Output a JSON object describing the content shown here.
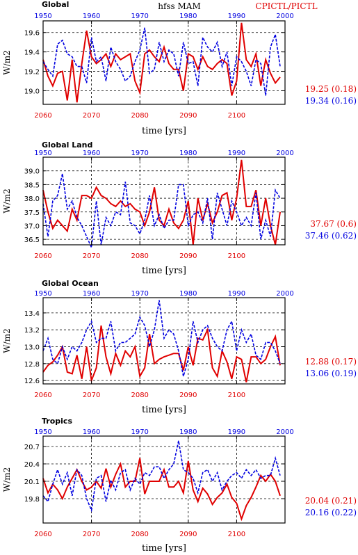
{
  "header": {
    "variable": "hfss MAM",
    "experiments": "CPICTL/PICTL",
    "exp_a_color": "#e00000",
    "exp_b_color": "#0000e0"
  },
  "chart_data": [
    {
      "type": "line",
      "title": "Global",
      "ylabel": "W/m2",
      "xlabel": "time [yrs]",
      "x_bottom_ticks": [
        "2060",
        "2070",
        "2080",
        "2090",
        "2100"
      ],
      "x_top_ticks": [
        "1950",
        "1960",
        "1970",
        "1980",
        "1990",
        "2000"
      ],
      "x_start_bottom": 2060,
      "x_start_top": 1950,
      "n_years": 50,
      "ylim": [
        18.86,
        19.72
      ],
      "yticks": [
        "19.0",
        "19.2",
        "19.4",
        "19.6"
      ],
      "ytick_values": [
        19.0,
        19.2,
        19.4,
        19.6
      ],
      "stats": [
        {
          "text": "19.25 (0.18)",
          "color": "#e00000"
        },
        {
          "text": "19.34 (0.16)",
          "color": "#0000e0"
        }
      ],
      "series": [
        {
          "name": "CPICTL",
          "color": "#e00000",
          "dash": "solid",
          "values": [
            19.32,
            19.15,
            19.05,
            19.18,
            19.2,
            18.9,
            19.32,
            18.88,
            19.28,
            19.62,
            19.35,
            19.28,
            19.32,
            19.38,
            19.25,
            19.38,
            19.32,
            19.35,
            19.38,
            19.1,
            18.98,
            19.38,
            19.42,
            19.35,
            19.3,
            19.45,
            19.28,
            19.22,
            19.22,
            19.0,
            19.38,
            19.35,
            19.22,
            19.35,
            19.25,
            19.22,
            19.28,
            19.32,
            19.28,
            18.95,
            19.1,
            19.7,
            19.32,
            19.25,
            19.38,
            19.05,
            19.32,
            19.18,
            19.08,
            19.14
          ]
        },
        {
          "name": "PICTL",
          "color": "#0000e0",
          "dash": "dashed",
          "values": [
            19.3,
            19.22,
            19.15,
            19.48,
            19.52,
            19.38,
            19.35,
            19.25,
            19.25,
            19.08,
            19.55,
            19.3,
            19.35,
            19.1,
            19.45,
            19.3,
            19.22,
            19.1,
            19.15,
            19.3,
            19.42,
            19.65,
            19.18,
            19.22,
            19.5,
            19.3,
            19.42,
            19.38,
            19.15,
            19.5,
            19.28,
            19.3,
            19.05,
            19.55,
            19.45,
            19.4,
            19.5,
            19.25,
            19.4,
            19.05,
            19.35,
            19.3,
            19.2,
            19.05,
            19.32,
            19.28,
            18.95,
            19.45,
            19.58,
            19.25
          ]
        }
      ]
    },
    {
      "type": "line",
      "title": "Global Land",
      "ylabel": "W/m2",
      "xlabel": "time [yrs]",
      "x_bottom_ticks": [
        "2060",
        "2070",
        "2080",
        "2090",
        "2100"
      ],
      "x_top_ticks": [
        "1950",
        "1960",
        "1970",
        "1980",
        "1990",
        "2000"
      ],
      "x_start_bottom": 2060,
      "x_start_top": 1950,
      "n_years": 50,
      "ylim": [
        36.3,
        39.5
      ],
      "yticks": [
        "36.5",
        "37.0",
        "37.5",
        "38.0",
        "38.5",
        "39.0"
      ],
      "ytick_values": [
        36.5,
        37.0,
        37.5,
        38.0,
        38.5,
        39.0
      ],
      "stats": [
        {
          "text": "37.67 (0.6)",
          "color": "#e00000"
        },
        {
          "text": "37.46 (0.62)",
          "color": "#0000e0"
        }
      ],
      "series": [
        {
          "name": "CPICTL",
          "color": "#e00000",
          "dash": "solid",
          "values": [
            38.3,
            37.5,
            36.9,
            37.2,
            37.0,
            36.8,
            37.6,
            37.2,
            38.1,
            38.1,
            38.0,
            38.4,
            38.1,
            38.0,
            37.8,
            37.7,
            37.9,
            37.7,
            37.8,
            37.6,
            37.5,
            37.0,
            37.5,
            38.4,
            37.2,
            37.0,
            37.6,
            37.1,
            36.9,
            37.2,
            37.9,
            36.3,
            38.0,
            37.2,
            37.8,
            37.1,
            37.5,
            38.1,
            38.2,
            37.2,
            38.0,
            39.4,
            37.7,
            37.7,
            38.3,
            37.0,
            38.0,
            37.0,
            36.3,
            37.5
          ]
        },
        {
          "name": "PICTL",
          "color": "#0000e0",
          "dash": "dashed",
          "values": [
            37.8,
            36.6,
            37.9,
            38.1,
            38.9,
            37.6,
            37.9,
            37.3,
            37.0,
            36.6,
            36.2,
            37.9,
            36.3,
            37.3,
            37.0,
            37.5,
            37.4,
            38.6,
            37.1,
            37.0,
            36.7,
            37.2,
            38.1,
            37.0,
            37.4,
            36.9,
            37.2,
            37.2,
            38.5,
            38.5,
            37.0,
            37.4,
            37.5,
            37.1,
            38.0,
            36.5,
            38.2,
            37.6,
            37.0,
            37.9,
            37.5,
            37.0,
            37.3,
            37.0,
            38.2,
            36.5,
            37.2,
            36.6,
            38.3,
            38.0
          ]
        }
      ]
    },
    {
      "type": "line",
      "title": "Global Ocean",
      "ylabel": "W/m2",
      "xlabel": "time [yrs]",
      "x_bottom_ticks": [
        "2060",
        "2070",
        "2080",
        "2090",
        "2100"
      ],
      "x_top_ticks": [
        "1950",
        "1960",
        "1970",
        "1980",
        "1990",
        "2000"
      ],
      "x_start_bottom": 2060,
      "x_start_top": 1950,
      "n_years": 50,
      "ylim": [
        12.56,
        13.58
      ],
      "yticks": [
        "12.6",
        "12.8",
        "13.0",
        "13.2",
        "13.4"
      ],
      "ytick_values": [
        12.6,
        12.8,
        13.0,
        13.2,
        13.4
      ],
      "stats": [
        {
          "text": "12.88 (0.17)",
          "color": "#e00000"
        },
        {
          "text": "13.06 (0.19)",
          "color": "#0000e0"
        }
      ],
      "series": [
        {
          "name": "CPICTL",
          "color": "#e00000",
          "dash": "solid",
          "values": [
            12.7,
            12.78,
            12.82,
            12.9,
            13.0,
            12.7,
            12.68,
            12.9,
            12.62,
            13.0,
            12.6,
            12.75,
            13.25,
            12.88,
            12.68,
            12.92,
            12.78,
            12.95,
            12.88,
            13.0,
            12.65,
            12.75,
            13.15,
            12.8,
            12.85,
            12.88,
            12.9,
            12.92,
            12.92,
            12.72,
            13.0,
            12.78,
            13.1,
            13.08,
            13.2,
            12.75,
            12.65,
            12.95,
            12.82,
            12.62,
            12.88,
            12.85,
            12.58,
            12.88,
            12.88,
            12.8,
            12.85,
            13.0,
            13.12,
            12.78
          ]
        },
        {
          "name": "PICTL",
          "color": "#0000e0",
          "dash": "dashed",
          "values": [
            12.95,
            13.1,
            12.85,
            12.8,
            13.0,
            12.85,
            13.0,
            12.95,
            13.05,
            13.2,
            13.3,
            13.05,
            13.1,
            13.1,
            13.3,
            12.95,
            13.05,
            13.05,
            13.1,
            13.15,
            13.35,
            13.25,
            13.0,
            13.2,
            13.55,
            13.1,
            13.2,
            13.15,
            12.95,
            12.65,
            12.85,
            13.3,
            13.05,
            13.2,
            13.25,
            13.1,
            13.0,
            12.95,
            13.2,
            13.3,
            12.95,
            13.2,
            13.05,
            13.15,
            12.9,
            12.85,
            13.05,
            13.05,
            12.95,
            12.8
          ]
        }
      ]
    },
    {
      "type": "line",
      "title": "Tropics",
      "ylabel": "W/m2",
      "xlabel": "time [yrs]",
      "x_bottom_ticks": [
        "2060",
        "2070",
        "2080",
        "2090",
        "2100"
      ],
      "x_top_ticks": [
        "1950",
        "1960",
        "1970",
        "1980",
        "1990",
        "2000"
      ],
      "x_start_bottom": 2060,
      "x_start_top": 1950,
      "n_years": 50,
      "ylim": [
        19.38,
        20.88
      ],
      "yticks": [
        "19.8",
        "20.1",
        "20.4",
        "20.7"
      ],
      "ytick_values": [
        19.8,
        20.1,
        20.4,
        20.7
      ],
      "stats": [
        {
          "text": "20.04 (0.21)",
          "color": "#e00000"
        },
        {
          "text": "20.16 (0.22)",
          "color": "#0000e0"
        }
      ],
      "series": [
        {
          "name": "CPICTL",
          "color": "#e00000",
          "dash": "solid",
          "values": [
            20.15,
            19.9,
            20.05,
            19.95,
            19.8,
            20.0,
            20.15,
            20.3,
            20.1,
            19.95,
            20.0,
            20.1,
            19.98,
            20.32,
            20.0,
            20.22,
            20.4,
            20.0,
            20.1,
            20.1,
            20.5,
            19.88,
            20.1,
            20.1,
            20.1,
            20.3,
            20.0,
            20.0,
            20.1,
            19.9,
            20.45,
            19.95,
            19.75,
            19.98,
            19.88,
            19.7,
            19.82,
            19.9,
            20.05,
            19.82,
            19.72,
            19.45,
            19.68,
            19.82,
            20.0,
            20.2,
            20.1,
            20.22,
            20.1,
            19.85
          ]
        },
        {
          "name": "PICTL",
          "color": "#0000e0",
          "dash": "dashed",
          "values": [
            19.85,
            19.75,
            20.05,
            20.3,
            20.05,
            20.25,
            19.85,
            20.3,
            20.2,
            19.8,
            19.6,
            20.15,
            20.2,
            19.75,
            20.12,
            19.95,
            20.25,
            20.3,
            19.95,
            20.15,
            20.05,
            20.25,
            20.2,
            20.35,
            20.35,
            20.15,
            20.3,
            20.4,
            20.8,
            20.3,
            20.25,
            20.15,
            19.9,
            20.25,
            20.3,
            20.1,
            20.25,
            19.95,
            20.1,
            20.2,
            20.25,
            20.15,
            20.3,
            20.2,
            20.3,
            20.15,
            20.2,
            20.2,
            20.5,
            20.2
          ]
        }
      ]
    }
  ]
}
